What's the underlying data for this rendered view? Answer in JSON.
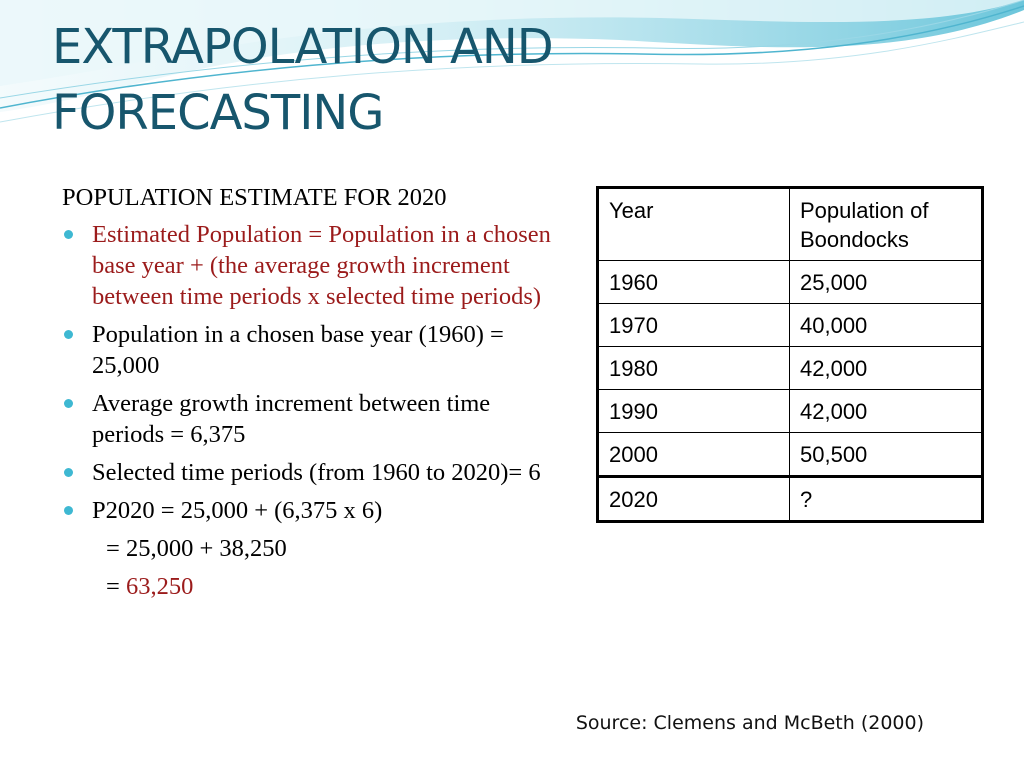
{
  "slide": {
    "title_line1": "EXTRAPOLATION AND",
    "title_line2": "FORECASTING",
    "heading": "POPULATION ESTIMATE FOR 2020",
    "bullets": [
      "Estimated Population = Population in a chosen base year + (the average growth increment between time periods x selected time periods)",
      "Population in a chosen base year (1960) = 25,000",
      "Average growth increment between time periods = 6,375",
      "Selected time periods (from 1960 to 2020)= 6",
      "P2020 = 25,000 + (6,375 x 6)"
    ],
    "calc_line1": "= 25,000 + 38,250",
    "calc_line2_prefix": "= ",
    "calc_result": "63,250",
    "source": "Source: Clemens and McBeth (2000)"
  },
  "table": {
    "headers": [
      "Year",
      "Population of Boondocks"
    ],
    "rows": [
      [
        "1960",
        "25,000"
      ],
      [
        "1970",
        "40,000"
      ],
      [
        "1980",
        "42,000"
      ],
      [
        "1990",
        "42,000"
      ],
      [
        "2000",
        "50,500"
      ],
      [
        "2020",
        "?"
      ]
    ]
  },
  "colors": {
    "title": "#17566d",
    "highlight": "#9b1b1b",
    "bullet": "#3eb8d2",
    "wave": "#7ccfe0"
  }
}
